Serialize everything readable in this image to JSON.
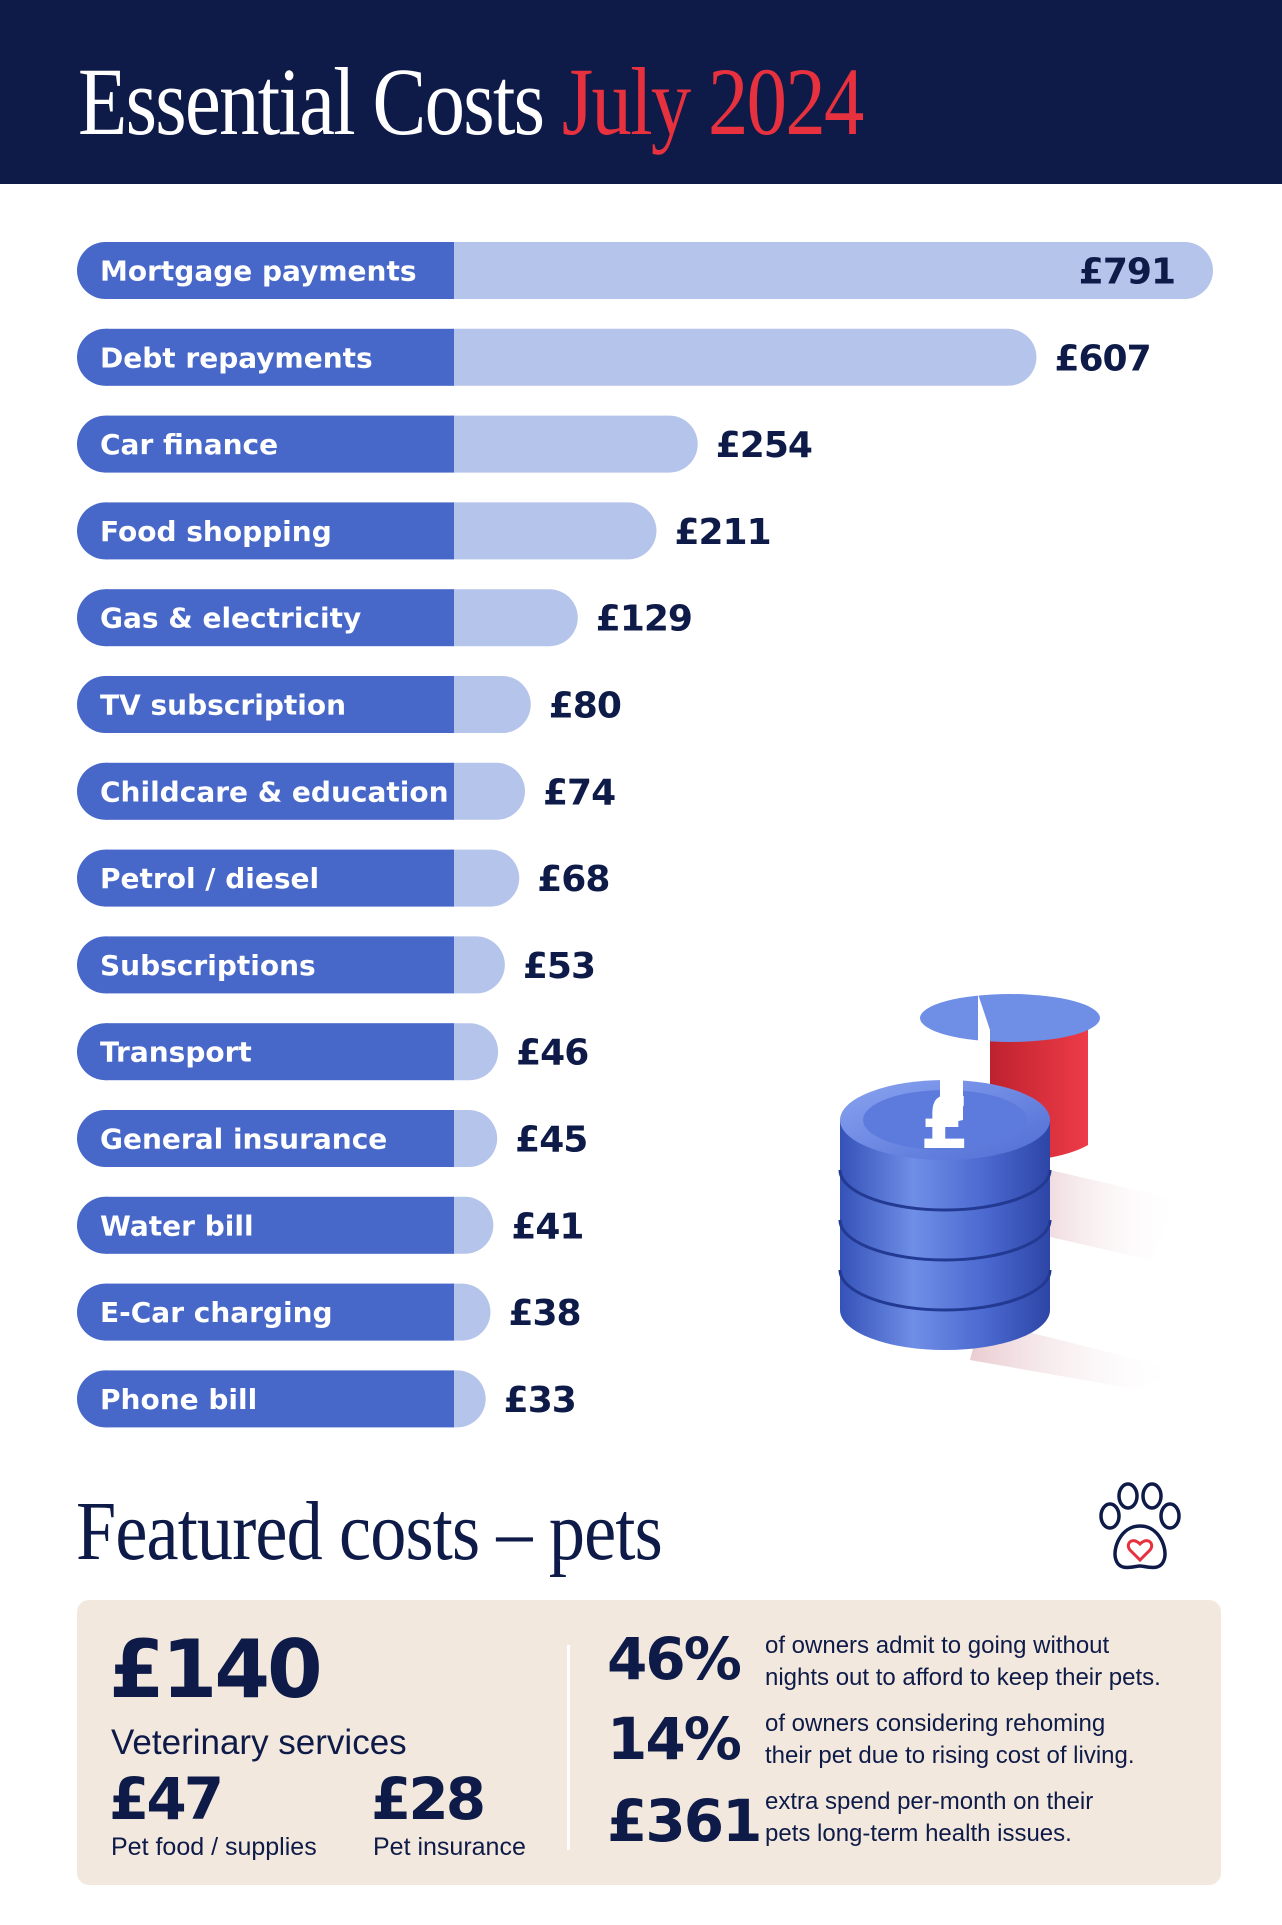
{
  "header": {
    "title_main": "Essential Costs",
    "title_accent": "July 2024"
  },
  "colors": {
    "navy": "#0e1b48",
    "accent_red": "#e8313e",
    "label_bar": "#4767c9",
    "value_bar": "#b5c4eb",
    "pets_panel": "#f2e8dd"
  },
  "chart_data": {
    "type": "bar",
    "orientation": "horizontal",
    "categories": [
      "Mortgage payments",
      "Debt repayments",
      "Car finance",
      "Food shopping",
      "Gas & electricity",
      "TV subscription",
      "Childcare & education",
      "Petrol / diesel",
      "Subscriptions",
      "Transport",
      "General insurance",
      "Water bill",
      "E-Car charging",
      "Phone bill"
    ],
    "values": [
      791,
      607,
      254,
      211,
      129,
      80,
      74,
      68,
      53,
      46,
      45,
      41,
      38,
      33
    ],
    "value_labels": [
      "£791",
      "£607",
      "£254",
      "£211",
      "£129",
      "£80",
      "£74",
      "£68",
      "£53",
      "£46",
      "£45",
      "£41",
      "£38",
      "£33"
    ],
    "unit": "£",
    "grid": false,
    "legend": "none"
  },
  "illustration": {
    "coins_icon": "pound-coin-stack-icon",
    "coin_symbol": "£",
    "paw_icon": "paw-heart-icon"
  },
  "pets": {
    "title": "Featured costs – pets",
    "main": {
      "value": "£140",
      "label": "Veterinary services"
    },
    "sub": [
      {
        "value": "£47",
        "label": "Pet food / supplies"
      },
      {
        "value": "£28",
        "label": "Pet insurance"
      }
    ],
    "stats": [
      {
        "value": "46%",
        "line1": "of owners admit to going without",
        "line2": "nights out to afford to keep their pets."
      },
      {
        "value": "14%",
        "line1": "of owners considering rehoming",
        "line2": "their pet due to rising cost of living."
      },
      {
        "value": "£361",
        "line1": "extra spend per-month on their",
        "line2": "pets long-term health issues."
      }
    ]
  }
}
